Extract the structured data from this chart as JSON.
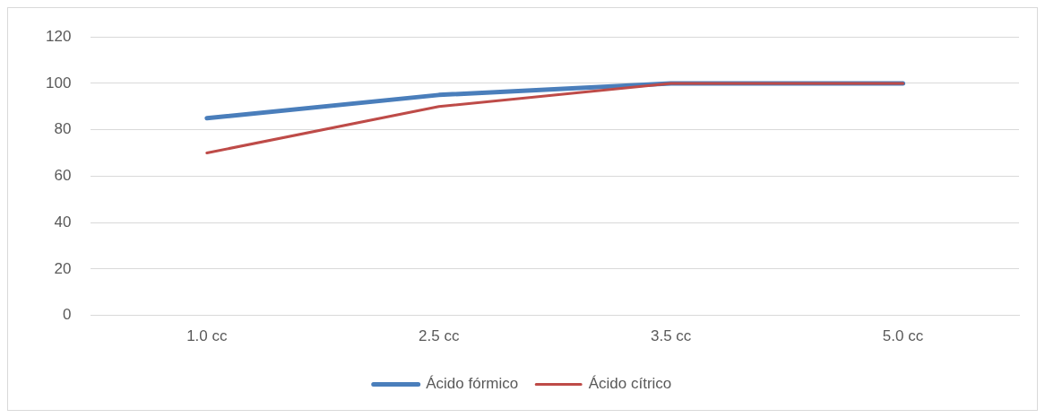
{
  "chart_data": {
    "type": "line",
    "categories": [
      "1.0 cc",
      "2.5 cc",
      "3.5 cc",
      "5.0 cc"
    ],
    "series": [
      {
        "name": "Ácido fórmico",
        "color": "#4a7ebb",
        "values": [
          85,
          95,
          100,
          100
        ]
      },
      {
        "name": "Ácido cítrico",
        "color": "#be4b48",
        "values": [
          70,
          90,
          100,
          100
        ]
      }
    ],
    "ylim": [
      0,
      120
    ],
    "yticks": [
      0,
      20,
      40,
      60,
      80,
      100,
      120
    ],
    "grid": "y",
    "legend": "bottom",
    "marker": "none",
    "line_style": "solid"
  }
}
